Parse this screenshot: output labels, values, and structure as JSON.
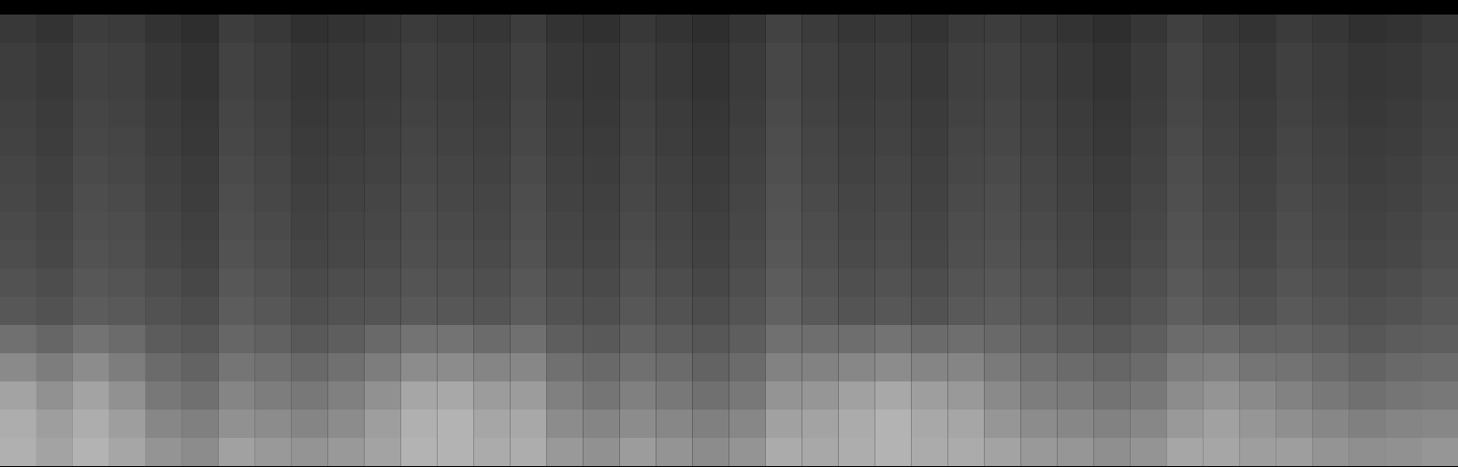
{
  "chart_data": {
    "type": "heatmap",
    "tick_labels": false,
    "zlim": [
      0,
      100
    ],
    "cells": [
      [
        22,
        20,
        24,
        23,
        20,
        18,
        24,
        22,
        19,
        20,
        21,
        23,
        22,
        21,
        24,
        20,
        19,
        22,
        20,
        18,
        21,
        26,
        23,
        21,
        22,
        20,
        23,
        24,
        22,
        20,
        18,
        21,
        25,
        22,
        20,
        23,
        21,
        19,
        20,
        22
      ],
      [
        24,
        22,
        26,
        25,
        22,
        20,
        26,
        24,
        21,
        22,
        23,
        25,
        24,
        23,
        26,
        22,
        21,
        24,
        22,
        20,
        23,
        28,
        25,
        23,
        24,
        22,
        25,
        26,
        24,
        22,
        20,
        23,
        27,
        24,
        22,
        25,
        23,
        21,
        22,
        24
      ],
      [
        24,
        22,
        26,
        25,
        22,
        20,
        26,
        24,
        21,
        22,
        23,
        25,
        24,
        23,
        26,
        22,
        21,
        24,
        22,
        20,
        23,
        28,
        25,
        23,
        24,
        22,
        25,
        26,
        24,
        22,
        20,
        23,
        27,
        24,
        22,
        25,
        23,
        21,
        22,
        24
      ],
      [
        25,
        23,
        27,
        26,
        23,
        21,
        27,
        25,
        22,
        23,
        24,
        26,
        25,
        24,
        27,
        23,
        22,
        25,
        23,
        21,
        24,
        29,
        26,
        24,
        25,
        23,
        26,
        27,
        25,
        23,
        21,
        24,
        28,
        25,
        23,
        26,
        24,
        22,
        23,
        25
      ],
      [
        26,
        24,
        28,
        27,
        24,
        22,
        28,
        26,
        23,
        24,
        25,
        27,
        26,
        25,
        28,
        24,
        23,
        26,
        24,
        22,
        25,
        30,
        27,
        25,
        26,
        24,
        27,
        28,
        26,
        24,
        22,
        25,
        29,
        26,
        24,
        27,
        25,
        23,
        24,
        26
      ],
      [
        27,
        25,
        29,
        28,
        25,
        23,
        29,
        27,
        24,
        25,
        26,
        28,
        27,
        26,
        29,
        25,
        24,
        27,
        25,
        23,
        26,
        31,
        28,
        26,
        27,
        25,
        28,
        29,
        27,
        25,
        23,
        26,
        30,
        27,
        25,
        28,
        26,
        24,
        25,
        27
      ],
      [
        28,
        26,
        30,
        29,
        26,
        24,
        30,
        28,
        25,
        26,
        27,
        29,
        28,
        27,
        30,
        26,
        25,
        28,
        26,
        24,
        27,
        32,
        29,
        27,
        28,
        26,
        29,
        30,
        28,
        26,
        24,
        27,
        31,
        28,
        26,
        29,
        27,
        25,
        26,
        28
      ],
      [
        29,
        27,
        31,
        30,
        27,
        25,
        31,
        29,
        26,
        27,
        28,
        30,
        29,
        28,
        31,
        27,
        26,
        29,
        27,
        25,
        28,
        33,
        30,
        28,
        29,
        27,
        30,
        31,
        29,
        27,
        25,
        28,
        32,
        29,
        27,
        30,
        28,
        26,
        27,
        29
      ],
      [
        30,
        28,
        32,
        31,
        28,
        26,
        32,
        30,
        27,
        28,
        29,
        31,
        30,
        29,
        32,
        28,
        27,
        30,
        28,
        26,
        29,
        34,
        31,
        29,
        30,
        28,
        31,
        32,
        30,
        28,
        26,
        29,
        33,
        30,
        28,
        31,
        29,
        27,
        28,
        30
      ],
      [
        32,
        30,
        34,
        33,
        30,
        28,
        34,
        32,
        29,
        30,
        31,
        33,
        32,
        31,
        34,
        30,
        29,
        32,
        30,
        28,
        31,
        36,
        33,
        31,
        32,
        30,
        33,
        34,
        32,
        30,
        28,
        31,
        35,
        32,
        30,
        33,
        31,
        29,
        30,
        32
      ],
      [
        34,
        32,
        36,
        35,
        32,
        30,
        36,
        34,
        31,
        32,
        33,
        35,
        34,
        33,
        36,
        32,
        31,
        34,
        32,
        30,
        33,
        38,
        35,
        33,
        34,
        32,
        35,
        36,
        34,
        32,
        30,
        33,
        37,
        34,
        32,
        35,
        33,
        31,
        32,
        34
      ],
      [
        44,
        40,
        45,
        42,
        36,
        34,
        40,
        38,
        35,
        37,
        41,
        45,
        45,
        42,
        44,
        37,
        35,
        38,
        36,
        34,
        37,
        44,
        43,
        43,
        45,
        42,
        43,
        41,
        38,
        36,
        34,
        37,
        42,
        42,
        39,
        39,
        37,
        34,
        36,
        37
      ],
      [
        54,
        49,
        55,
        49,
        42,
        39,
        46,
        44,
        41,
        44,
        49,
        55,
        55,
        52,
        53,
        44,
        41,
        44,
        42,
        39,
        42,
        51,
        51,
        53,
        55,
        52,
        52,
        48,
        44,
        42,
        40,
        42,
        49,
        50,
        46,
        45,
        42,
        39,
        41,
        42
      ],
      [
        64,
        57,
        64,
        57,
        47,
        44,
        52,
        49,
        47,
        50,
        57,
        65,
        66,
        61,
        61,
        50,
        46,
        50,
        47,
        44,
        47,
        58,
        59,
        63,
        66,
        62,
        60,
        54,
        49,
        48,
        45,
        47,
        55,
        58,
        54,
        51,
        47,
        44,
        46,
        47
      ],
      [
        68,
        62,
        68,
        62,
        53,
        50,
        57,
        55,
        52,
        55,
        62,
        69,
        70,
        65,
        66,
        55,
        52,
        55,
        53,
        50,
        53,
        63,
        64,
        67,
        70,
        66,
        65,
        59,
        55,
        53,
        51,
        53,
        60,
        63,
        59,
        56,
        53,
        50,
        52,
        53
      ],
      [
        69,
        64,
        70,
        65,
        58,
        55,
        63,
        60,
        58,
        60,
        64,
        70,
        70,
        67,
        68,
        60,
        57,
        61,
        58,
        55,
        58,
        67,
        66,
        68,
        70,
        67,
        67,
        64,
        60,
        59,
        56,
        58,
        65,
        65,
        62,
        62,
        58,
        56,
        57,
        59
      ]
    ]
  }
}
